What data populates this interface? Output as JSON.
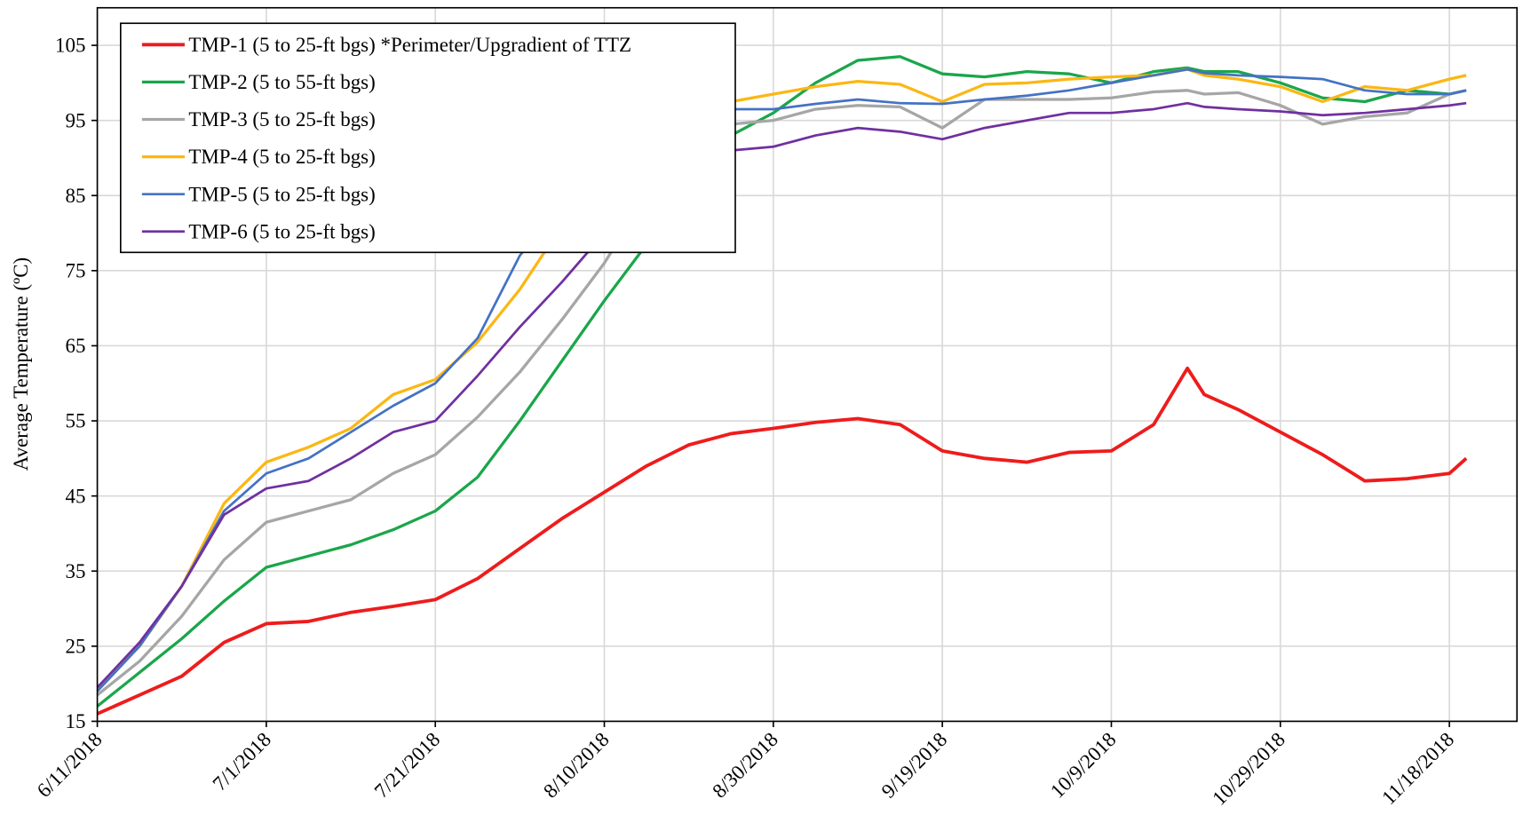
{
  "chart_data": {
    "type": "line",
    "y_label": "Average Temperature  (ºC)",
    "x": [
      "6/11/2018",
      "6/16/2018",
      "6/21/2018",
      "6/26/2018",
      "7/1/2018",
      "7/6/2018",
      "7/11/2018",
      "7/16/2018",
      "7/21/2018",
      "7/26/2018",
      "7/31/2018",
      "8/5/2018",
      "8/10/2018",
      "8/15/2018",
      "8/20/2018",
      "8/25/2018",
      "8/30/2018",
      "9/4/2018",
      "9/9/2018",
      "9/14/2018",
      "9/19/2018",
      "9/24/2018",
      "9/29/2018",
      "10/4/2018",
      "10/9/2018",
      "10/14/2018",
      "10/18/2018",
      "10/20/2018",
      "10/24/2018",
      "10/29/2018",
      "11/3/2018",
      "11/8/2018",
      "11/13/2018",
      "11/18/2018",
      "11/20/2018"
    ],
    "xlim": [
      "6/11/2018",
      "11/26/2018"
    ],
    "xticks": [
      "6/11/2018",
      "7/1/2018",
      "7/21/2018",
      "8/10/2018",
      "8/30/2018",
      "9/19/2018",
      "10/9/2018",
      "10/29/2018",
      "11/18/2018"
    ],
    "ylim": [
      15,
      110
    ],
    "yticks": [
      15,
      25,
      35,
      45,
      55,
      65,
      75,
      85,
      95,
      105
    ],
    "grid": true,
    "legend": "upper left",
    "series": [
      {
        "name": "TMP-1 (5 to 25-ft bgs) *Perimeter/Upgradient of TTZ",
        "color": "#ee1c1c",
        "width": 3.5,
        "values": [
          16,
          18.5,
          21,
          25.5,
          28,
          28.3,
          29.5,
          30.3,
          31.2,
          34,
          38,
          42,
          45.5,
          49,
          51.8,
          53.3,
          54,
          54.8,
          55.3,
          54.5,
          51,
          50,
          49.5,
          50.8,
          51,
          54.5,
          62,
          58.5,
          56.5,
          53.5,
          50.5,
          47,
          47.3,
          48,
          50
        ]
      },
      {
        "name": "TMP-2 (5 to 55-ft bgs)",
        "color": "#1aa64a",
        "width": 3,
        "values": [
          17,
          21.5,
          26,
          31,
          35.5,
          37,
          38.5,
          40.5,
          43,
          47.5,
          55,
          63,
          71,
          78.5,
          87,
          93,
          96,
          100,
          103,
          103.5,
          101.2,
          100.8,
          101.5,
          101.2,
          100,
          101.5,
          102,
          101.5,
          101.5,
          100,
          98,
          97.5,
          99,
          98.5,
          99
        ]
      },
      {
        "name": "TMP-3 (5 to 25-ft bgs)",
        "color": "#a6a6a6",
        "width": 3,
        "values": [
          18.5,
          23,
          29,
          36.5,
          41.5,
          43,
          44.5,
          48,
          50.5,
          55.5,
          61.5,
          68.5,
          76,
          85,
          91,
          94.5,
          95,
          96.5,
          97,
          96.8,
          94,
          97.8,
          97.8,
          97.8,
          98,
          98.8,
          99,
          98.5,
          98.7,
          97,
          94.5,
          95.5,
          96,
          98.5,
          99
        ]
      },
      {
        "name": "TMP-4 (5 to 25-ft bgs)",
        "color": "#fbb714",
        "width": 3,
        "values": [
          19.5,
          25,
          33,
          44,
          49.5,
          51.5,
          54,
          58.5,
          60.5,
          65.5,
          72.5,
          81,
          88,
          93,
          96.5,
          97.5,
          98.5,
          99.5,
          100.2,
          99.8,
          97.5,
          99.8,
          100,
          100.5,
          100.8,
          101,
          101.8,
          101,
          100.5,
          99.5,
          97.5,
          99.5,
          99,
          100.5,
          101
        ]
      },
      {
        "name": "TMP-5 (5 to 25-ft bgs)",
        "color": "#4472c4",
        "width": 2.5,
        "values": [
          19,
          25,
          33,
          43,
          48,
          50,
          53.5,
          57,
          60,
          66,
          77,
          84,
          89,
          93,
          96,
          96.5,
          96.5,
          97.2,
          97.8,
          97.3,
          97.2,
          97.8,
          98.3,
          99,
          100,
          101,
          101.8,
          101.3,
          101,
          100.8,
          100.5,
          99,
          98.5,
          98.5,
          99
        ]
      },
      {
        "name": "TMP-6 (5 to 25-ft bgs)",
        "color": "#7030a0",
        "width": 2.5,
        "values": [
          19.5,
          25.5,
          33,
          42.5,
          46,
          47,
          50,
          53.5,
          55,
          61,
          67.5,
          73.5,
          80,
          85.5,
          88.5,
          91,
          91.5,
          93,
          94,
          93.5,
          92.5,
          94,
          95,
          96,
          96,
          96.5,
          97.3,
          96.8,
          96.5,
          96.2,
          95.7,
          96,
          96.5,
          97,
          97.3
        ]
      }
    ]
  }
}
